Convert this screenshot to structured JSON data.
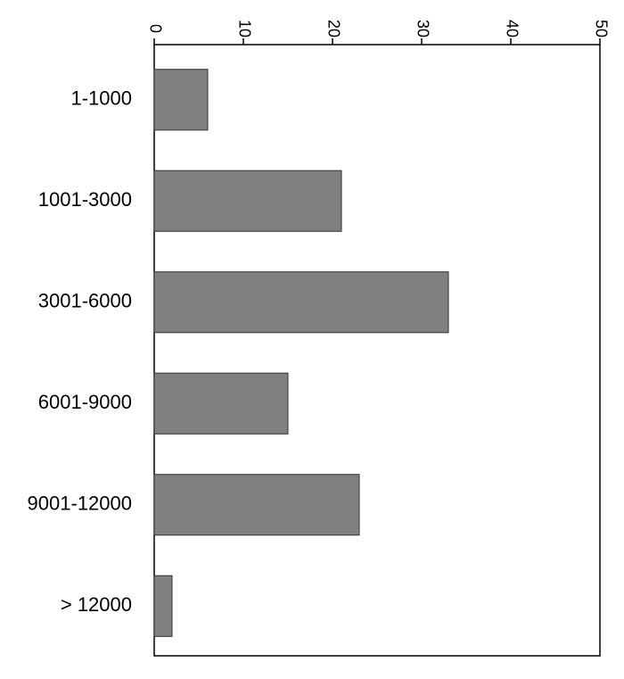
{
  "chart_data": {
    "type": "hbar",
    "categories": [
      "1-1000",
      "1001-3000",
      "3001-6000",
      "6001-9000",
      "9001-12000",
      "> 12000"
    ],
    "values": [
      6,
      21,
      33,
      15,
      23,
      2
    ],
    "color": "#808080",
    "xlim": [
      0,
      50
    ],
    "xticks": [
      0,
      10,
      20,
      30,
      40,
      50
    ],
    "grid": false
  }
}
